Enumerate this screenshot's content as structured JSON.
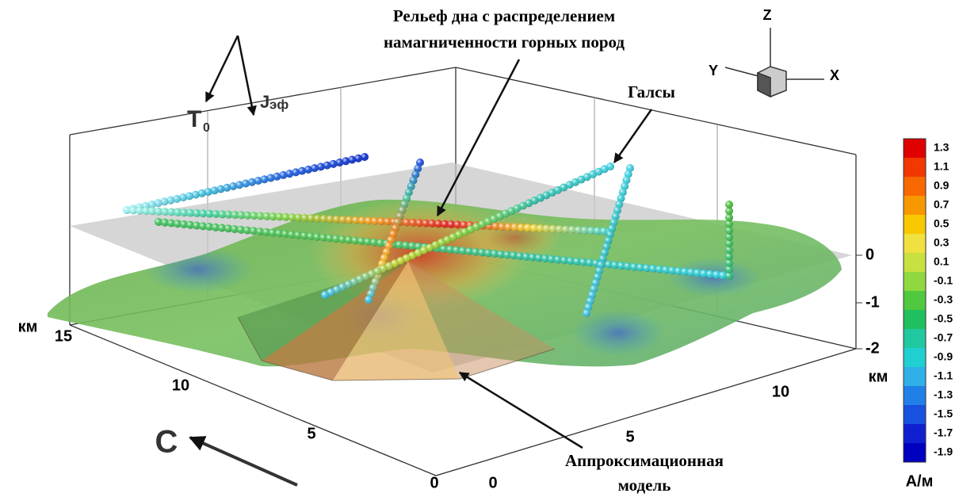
{
  "annotations": {
    "relief": [
      "Рельеф дна с распределением",
      "намагниченности горных пород"
    ],
    "tracks": "Галсы",
    "model": [
      "Аппроксимационная",
      "модель"
    ],
    "north": "С",
    "t0": {
      "main": "Т",
      "sub": "0"
    },
    "jeff": {
      "main": "J",
      "sub": "эф"
    }
  },
  "orientation": {
    "z": "Z",
    "y": "Y",
    "x": "X"
  },
  "axes": {
    "y_unit": "км",
    "y_ticks": [
      15,
      10,
      5,
      0
    ],
    "x_unit": "км",
    "x_ticks": [
      0,
      5,
      10
    ],
    "z_ticks": [
      0,
      -1,
      -2
    ]
  },
  "colorbar": {
    "ticks": [
      1.3,
      1.1,
      0.9,
      0.7,
      0.5,
      0.3,
      0.1,
      -0.1,
      -0.3,
      -0.5,
      -0.7,
      -0.9,
      -1.1,
      -1.3,
      -1.5,
      -1.7,
      -1.9
    ],
    "colors": [
      "#e00000",
      "#f03800",
      "#f86800",
      "#f89800",
      "#f8c800",
      "#f0e040",
      "#c8e040",
      "#90d840",
      "#50c840",
      "#20c060",
      "#20c8a0",
      "#20d0d0",
      "#30b0e8",
      "#2080e8",
      "#1850e0",
      "#1020d0",
      "#0000c0"
    ],
    "unit": "А/м"
  }
}
